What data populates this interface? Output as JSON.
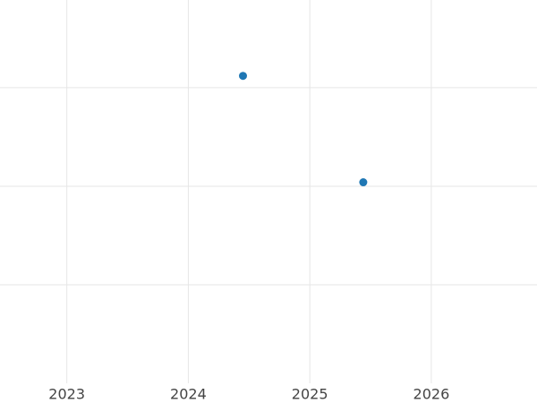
{
  "chart_data": {
    "type": "scatter",
    "x": [
      2024.45,
      2025.44
    ],
    "values": [
      3.12,
      2.04
    ],
    "color": "#1f77b4",
    "xlim": [
      2022.45,
      2026.87
    ],
    "xticks": [
      2023,
      2024,
      2025,
      2026
    ],
    "ylim": [
      0,
      3.89
    ],
    "yticks": [
      1,
      2,
      3
    ],
    "grid": true
  }
}
